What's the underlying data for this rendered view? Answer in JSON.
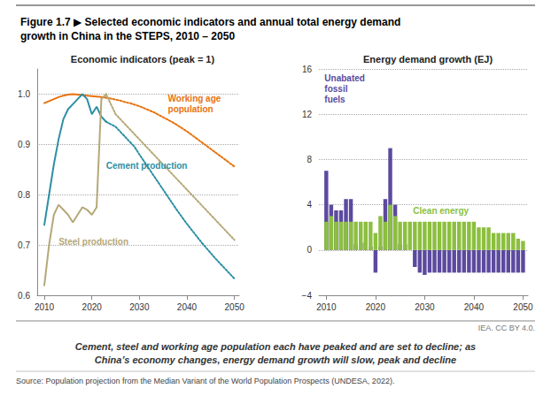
{
  "title": "Figure 1.7 ▶ Selected economic indicators and annual total energy demand\ngrowth in China in the STEPS, 2010 – 2050",
  "subtitle": "Cement, steel and working age population each have peaked and are set to decline; as\nChina’s economy changes, energy demand growth will slow, peak and decline",
  "annotations": [
    "IEA. CC BY 4.0.",
    "Source: Population projection from the Median Variant of the World Population Prospects (UNDESA, 2022)."
  ],
  "chart_data": [
    {
      "type": "line",
      "title": "Economic indicators (peak = 1)",
      "x": [
        2010,
        2011,
        2012,
        2013,
        2014,
        2015,
        2016,
        2017,
        2018,
        2019,
        2020,
        2021,
        2022,
        2023,
        2024,
        2025,
        2026,
        2027,
        2028,
        2029,
        2030,
        2031,
        2032,
        2033,
        2034,
        2035,
        2036,
        2037,
        2038,
        2039,
        2040,
        2041,
        2042,
        2043,
        2044,
        2045,
        2046,
        2047,
        2048,
        2049,
        2050
      ],
      "series": [
        {
          "name": "Working age\npopulation",
          "color": "#E8720C",
          "line_style": "solid",
          "values": [
            0.982,
            0.986,
            0.99,
            0.994,
            0.997,
            0.999,
            1.0,
            0.999,
            0.998,
            0.997,
            0.996,
            0.995,
            0.994,
            0.993,
            null,
            null,
            null,
            null,
            null,
            null,
            null,
            null,
            null,
            null,
            null,
            null,
            null,
            null,
            null,
            null,
            null,
            null,
            null,
            null,
            null,
            null,
            null,
            null,
            null,
            null,
            null
          ]
        },
        {
          "color": "#E8720C",
          "line_style": "dotted",
          "values": [
            null,
            null,
            null,
            null,
            null,
            null,
            null,
            null,
            null,
            null,
            null,
            null,
            null,
            0.993,
            0.991,
            0.989,
            0.987,
            0.984,
            0.982,
            0.979,
            0.976,
            0.972,
            0.968,
            0.964,
            0.959,
            0.954,
            0.949,
            0.944,
            0.938,
            0.932,
            0.926,
            0.919,
            0.912,
            0.905,
            0.898,
            0.891,
            0.884,
            0.877,
            0.87,
            0.863,
            0.856
          ]
        },
        {
          "name": "Cement production",
          "color": "#2D8FA5",
          "line_style": "solid",
          "values": [
            0.74,
            0.8,
            0.86,
            0.91,
            0.95,
            0.97,
            0.98,
            0.99,
            1.0,
            0.99,
            0.96,
            0.975,
            0.955,
            0.945,
            null,
            null,
            null,
            null,
            null,
            null,
            null,
            null,
            null,
            null,
            null,
            null,
            null,
            null,
            null,
            null,
            null,
            null,
            null,
            null,
            null,
            null,
            null,
            null,
            null,
            null,
            null
          ]
        },
        {
          "color": "#2D8FA5",
          "line_style": "dotted",
          "values": [
            null,
            null,
            null,
            null,
            null,
            null,
            null,
            null,
            null,
            null,
            null,
            null,
            null,
            0.945,
            0.94,
            0.935,
            0.925,
            0.915,
            0.905,
            0.895,
            0.88,
            0.866,
            0.852,
            0.838,
            0.824,
            0.81,
            0.796,
            0.782,
            0.768,
            0.755,
            0.742,
            0.73,
            0.718,
            0.706,
            0.695,
            0.684,
            0.673,
            0.663,
            0.653,
            0.643,
            0.633
          ]
        },
        {
          "name": "Steel production",
          "color": "#B5A878",
          "line_style": "solid",
          "values": [
            0.62,
            0.7,
            0.76,
            0.78,
            0.77,
            0.76,
            0.745,
            0.76,
            0.775,
            0.77,
            0.76,
            0.775,
            0.99,
            1.0,
            null,
            null,
            null,
            null,
            null,
            null,
            null,
            null,
            null,
            null,
            null,
            null,
            null,
            null,
            null,
            null,
            null,
            null,
            null,
            null,
            null,
            null,
            null,
            null,
            null,
            null,
            null
          ]
        },
        {
          "color": "#B5A878",
          "line_style": "dotted",
          "values": [
            null,
            null,
            null,
            null,
            null,
            null,
            null,
            null,
            null,
            null,
            null,
            null,
            null,
            1.0,
            0.98,
            0.96,
            0.95,
            0.94,
            0.93,
            0.92,
            0.91,
            0.9,
            0.89,
            0.88,
            0.87,
            0.86,
            0.85,
            0.84,
            0.83,
            0.82,
            0.81,
            0.8,
            0.79,
            0.78,
            0.77,
            0.76,
            0.75,
            0.74,
            0.73,
            0.72,
            0.71
          ]
        }
      ],
      "xlim": [
        2008.5,
        2051
      ],
      "xticks": [
        2010,
        2020,
        2030,
        2040,
        2050
      ],
      "ylim": [
        0.6,
        1.05
      ],
      "yticks": [
        0.6,
        0.7,
        0.8,
        0.9,
        {
          "value": 1.0,
          "label": "1.0"
        }
      ],
      "grid": true
    },
    {
      "type": "bar",
      "title": "Energy demand growth (EJ)",
      "stacked": true,
      "x": [
        2010,
        2011,
        2012,
        2013,
        2014,
        2015,
        2016,
        2017,
        2018,
        2019,
        2020,
        2021,
        2022,
        2023,
        2024,
        2025,
        2026,
        2027,
        2028,
        2029,
        2030,
        2031,
        2032,
        2033,
        2034,
        2035,
        2036,
        2037,
        2038,
        2039,
        2040,
        2041,
        2042,
        2043,
        2044,
        2045,
        2046,
        2047,
        2048,
        2049,
        2050
      ],
      "series": [
        {
          "name": "Unabated\nfossil\nfuels",
          "color": "#5B4A9E",
          "values": [
            7.0,
            4.0,
            3.5,
            3.5,
            4.5,
            4.5,
            0.5,
            0.6,
            0.7,
            0.3,
            -2.0,
            0.3,
            4.5,
            9.0,
            4.0,
            0.5,
            0.5,
            0.0,
            -1.5,
            -2.0,
            -2.2,
            -2.0,
            -2.0,
            -2.0,
            -2.0,
            -2.0,
            -2.0,
            -2.0,
            -2.0,
            -2.0,
            -2.0,
            -2.0,
            -2.0,
            -2.0,
            -2.0,
            -2.0,
            -2.0,
            -2.0,
            -2.0,
            -2.0,
            -2.0
          ]
        },
        {
          "name": "Clean energy",
          "color": "#8CBF3F",
          "values": [
            2.5,
            3.0,
            2.5,
            2.5,
            2.5,
            2.5,
            2.5,
            2.5,
            2.5,
            2.5,
            1.5,
            3.0,
            2.5,
            4.0,
            3.0,
            2.5,
            2.5,
            2.5,
            2.5,
            2.5,
            2.5,
            2.5,
            2.5,
            2.5,
            2.5,
            2.5,
            2.5,
            2.5,
            2.5,
            2.5,
            2.5,
            2.0,
            2.0,
            2.0,
            1.5,
            1.5,
            1.5,
            1.5,
            1.5,
            1.0,
            0.8
          ]
        }
      ],
      "xlim": [
        2008.5,
        2051
      ],
      "xticks": [
        2010,
        2020,
        2030,
        2040,
        2050
      ],
      "ylim": [
        -4,
        16
      ],
      "yticks": [
        {
          "value": -4,
          "label": "−4"
        },
        0,
        4,
        8,
        12,
        16
      ],
      "grid": true
    }
  ]
}
